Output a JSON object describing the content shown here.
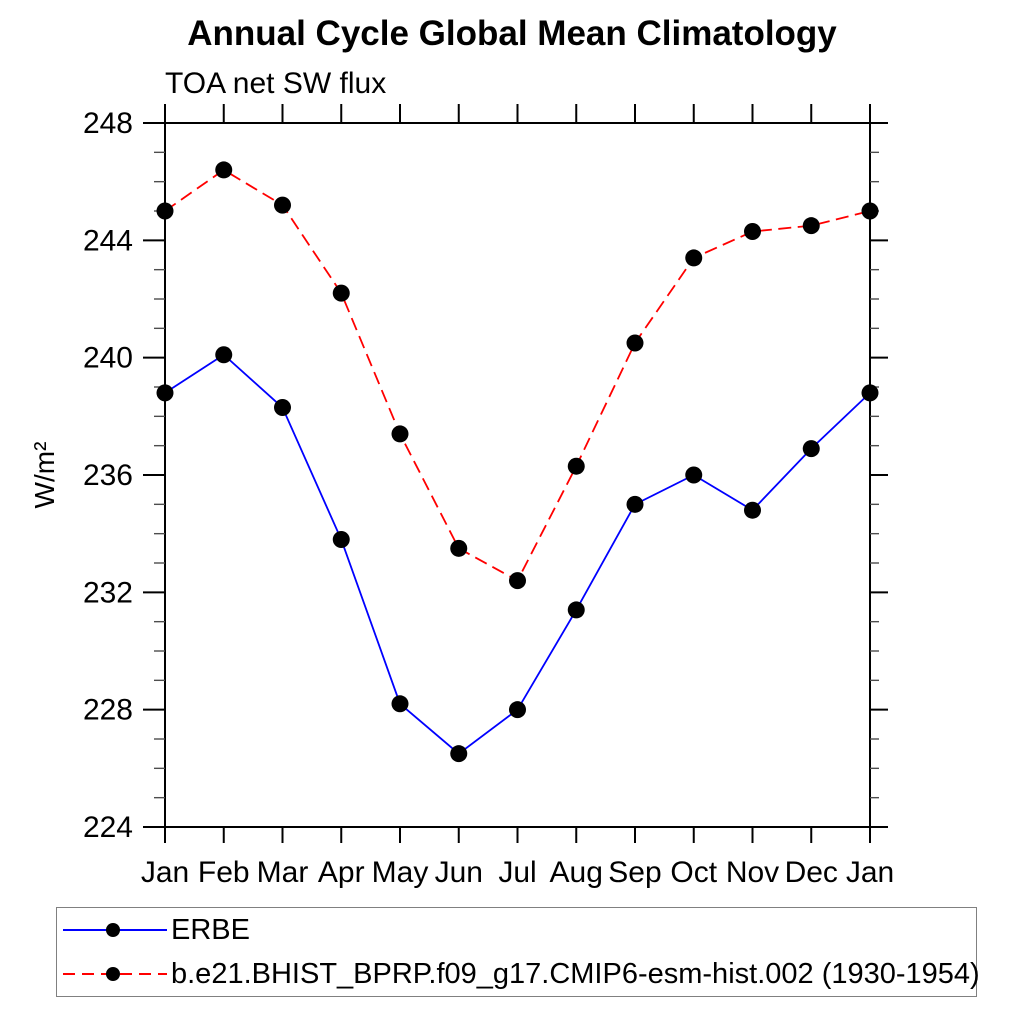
{
  "chart_data": {
    "type": "line",
    "title": "Annual Cycle Global Mean Climatology",
    "subtitle": "TOA net SW flux",
    "ylabel": "W/m²",
    "xlabel": "",
    "x_categories": [
      "Jan",
      "Feb",
      "Mar",
      "Apr",
      "May",
      "Jun",
      "Jul",
      "Aug",
      "Sep",
      "Oct",
      "Nov",
      "Dec",
      "Jan"
    ],
    "ylim": [
      224,
      248
    ],
    "yticks_major": [
      224,
      228,
      232,
      236,
      240,
      244,
      248
    ],
    "ytick_minor_step": 1,
    "grid": false,
    "legend_position": "bottom-box",
    "axis_color": "#000000",
    "series": [
      {
        "name": "ERBE",
        "line_color": "#0000ff",
        "line_style": "solid",
        "marker": "filled-circle",
        "marker_color": "#000000",
        "values": [
          238.8,
          240.1,
          238.3,
          233.8,
          228.2,
          226.5,
          228.0,
          231.4,
          235.0,
          236.0,
          234.8,
          236.9,
          238.8
        ]
      },
      {
        "name": "b.e21.BHIST_BPRP.f09_g17.CMIP6-esm-hist.002 (1930-1954)",
        "line_color": "#ff0000",
        "line_style": "dashed",
        "marker": "filled-circle",
        "marker_color": "#000000",
        "values": [
          245.0,
          246.4,
          245.2,
          242.2,
          237.4,
          233.5,
          232.4,
          236.3,
          240.5,
          243.4,
          244.3,
          244.5,
          245.0
        ]
      }
    ]
  }
}
